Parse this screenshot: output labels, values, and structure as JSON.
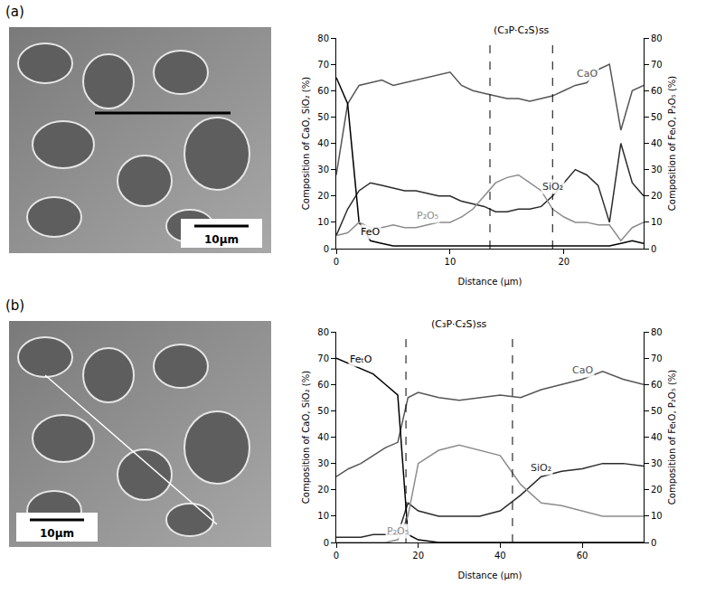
{
  "panels": [
    {
      "label": "(a)",
      "scale_bar": "10μm"
    },
    {
      "label": "(b)",
      "scale_bar": "10μm"
    }
  ],
  "chart_data": [
    {
      "type": "line",
      "x_label": "Distance (μm)",
      "y_label": "Composition of CaO, SiO₂ (%)",
      "y2_label": "Composition of FeₜO, P₂O₅ (%)",
      "x": [
        0,
        1,
        2,
        3,
        4,
        5,
        6,
        7,
        8,
        9,
        10,
        11,
        12,
        13,
        14,
        15,
        16,
        17,
        18,
        19,
        20,
        21,
        22,
        23,
        24,
        25,
        26,
        27
      ],
      "xlim": [
        0,
        27
      ],
      "xticks": [
        0,
        10,
        20
      ],
      "ylim": [
        0,
        80
      ],
      "yticks": [
        0,
        10,
        20,
        30,
        40,
        50,
        60,
        70,
        80
      ],
      "y2lim": [
        0,
        80
      ],
      "y2ticks": [
        0,
        10,
        20,
        30,
        40,
        50,
        60,
        70,
        80
      ],
      "grid": false,
      "region": {
        "label": "(C₃P·C₂S)ss",
        "x": [
          13.5,
          19
        ]
      },
      "series": [
        {
          "name": "CaO",
          "color": "#555555",
          "values": [
            28,
            55,
            62,
            63,
            64,
            62,
            63,
            64,
            65,
            66,
            67,
            62,
            60,
            59,
            58,
            57,
            57,
            56,
            57,
            58,
            60,
            62,
            63,
            68,
            70,
            45,
            60,
            62
          ]
        },
        {
          "name": "SiO₂",
          "color": "#2b2b2b",
          "values": [
            5,
            15,
            22,
            25,
            24,
            23,
            22,
            22,
            21,
            20,
            20,
            18,
            17,
            16,
            14,
            14,
            15,
            15,
            16,
            20,
            25,
            30,
            28,
            24,
            10,
            40,
            25,
            20
          ]
        },
        {
          "name": "FeO",
          "color": "#000000",
          "axis": "y2",
          "values": [
            65,
            55,
            10,
            3,
            2,
            1,
            1,
            1,
            1,
            1,
            1,
            1,
            1,
            1,
            1,
            1,
            1,
            1,
            1,
            1,
            1,
            1,
            1,
            1,
            1,
            2,
            3,
            2
          ]
        },
        {
          "name": "P₂O₅",
          "color": "#8c8c8c",
          "axis": "y2",
          "values": [
            5,
            6,
            10,
            8,
            8,
            9,
            8,
            8,
            9,
            10,
            10,
            12,
            15,
            20,
            25,
            27,
            28,
            25,
            22,
            15,
            12,
            10,
            10,
            9,
            9,
            3,
            8,
            10
          ]
        }
      ]
    },
    {
      "type": "line",
      "x_label": "Distance (μm)",
      "y_label": "Composition of CaO, SiO₂ (%)",
      "y2_label": "Composition of FeₜO, P₂O₅ (%)",
      "x": [
        0,
        3,
        6,
        9,
        12,
        15,
        17.5,
        20,
        25,
        30,
        35,
        40,
        45,
        50,
        55,
        60,
        65,
        70,
        75
      ],
      "xlim": [
        0,
        75
      ],
      "xticks": [
        0,
        20,
        40,
        60
      ],
      "ylim": [
        0,
        80
      ],
      "yticks": [
        0,
        10,
        20,
        30,
        40,
        50,
        60,
        70,
        80
      ],
      "y2lim": [
        0,
        80
      ],
      "y2ticks": [
        0,
        10,
        20,
        30,
        40,
        50,
        60,
        70,
        80
      ],
      "grid": false,
      "region": {
        "label": "(C₃P·C₂S)ss",
        "x": [
          17,
          43
        ]
      },
      "series": [
        {
          "name": "CaO",
          "color": "#555555",
          "values": [
            25,
            28,
            30,
            33,
            36,
            38,
            55,
            57,
            55,
            54,
            55,
            56,
            55,
            58,
            60,
            62,
            65,
            62,
            60
          ]
        },
        {
          "name": "SiO₂",
          "color": "#2b2b2b",
          "values": [
            2,
            2,
            2,
            3,
            3,
            3,
            15,
            12,
            10,
            10,
            10,
            12,
            18,
            25,
            27,
            28,
            30,
            30,
            29
          ]
        },
        {
          "name": "FeₜO",
          "color": "#000000",
          "axis": "y2",
          "values": [
            70,
            68,
            66,
            64,
            60,
            56,
            3,
            1,
            0,
            0,
            0,
            0,
            0,
            0,
            0,
            0,
            0,
            0,
            0
          ]
        },
        {
          "name": "P₂O₅",
          "color": "#8c8c8c",
          "axis": "y2",
          "values": [
            0,
            0,
            0,
            0,
            0,
            1,
            10,
            30,
            35,
            37,
            35,
            33,
            22,
            15,
            14,
            12,
            10,
            10,
            10
          ]
        }
      ]
    }
  ]
}
